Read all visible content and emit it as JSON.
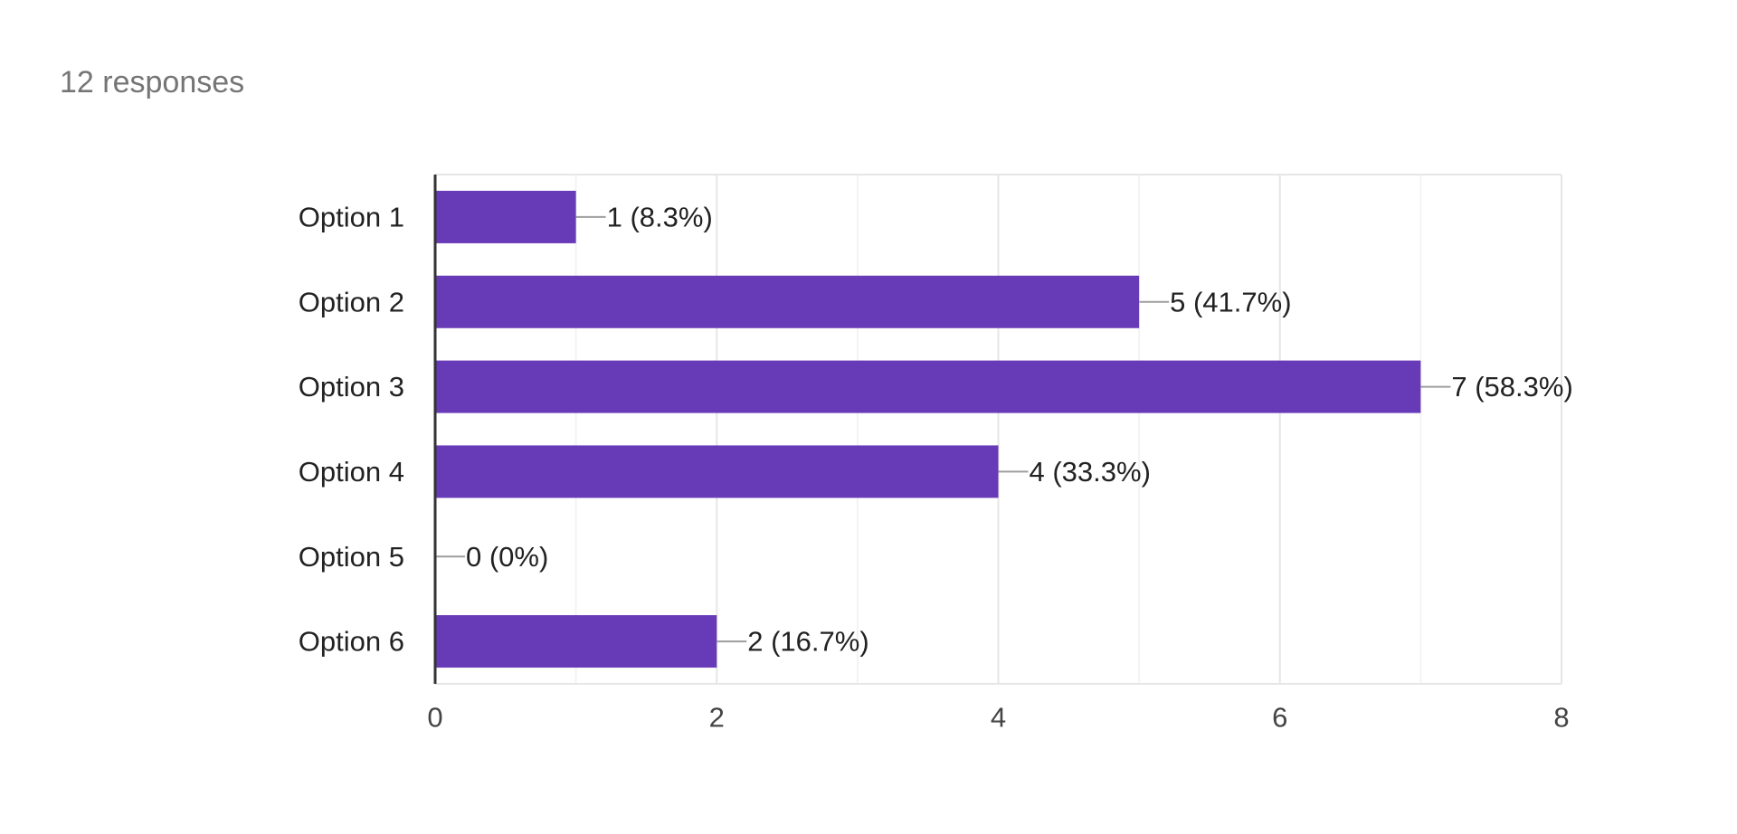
{
  "header": {
    "responses_text": "12 responses"
  },
  "colors": {
    "bar": "#673AB7",
    "axis": "#333333",
    "grid_major": "#e6e6e6",
    "grid_minor": "#f3f3f3",
    "leader": "#9e9e9e",
    "category_text": "#222222",
    "tick_text": "#444444"
  },
  "chart_data": {
    "type": "bar",
    "orientation": "horizontal",
    "categories": [
      "Option 1",
      "Option 2",
      "Option 3",
      "Option 4",
      "Option 5",
      "Option 6"
    ],
    "values": [
      1,
      5,
      7,
      4,
      0,
      2
    ],
    "value_labels": [
      "1 (8.3%)",
      "5 (41.7%)",
      "7 (58.3%)",
      "4 (33.3%)",
      "0 (0%)",
      "2 (16.7%)"
    ],
    "xlim": [
      0,
      8
    ],
    "xticks": [
      0,
      2,
      4,
      6,
      8
    ],
    "xtick_labels": [
      "0",
      "2",
      "4",
      "6",
      "8"
    ],
    "minor_gridlines": [
      1,
      3,
      5,
      7
    ],
    "grid": true,
    "legend": "none"
  }
}
